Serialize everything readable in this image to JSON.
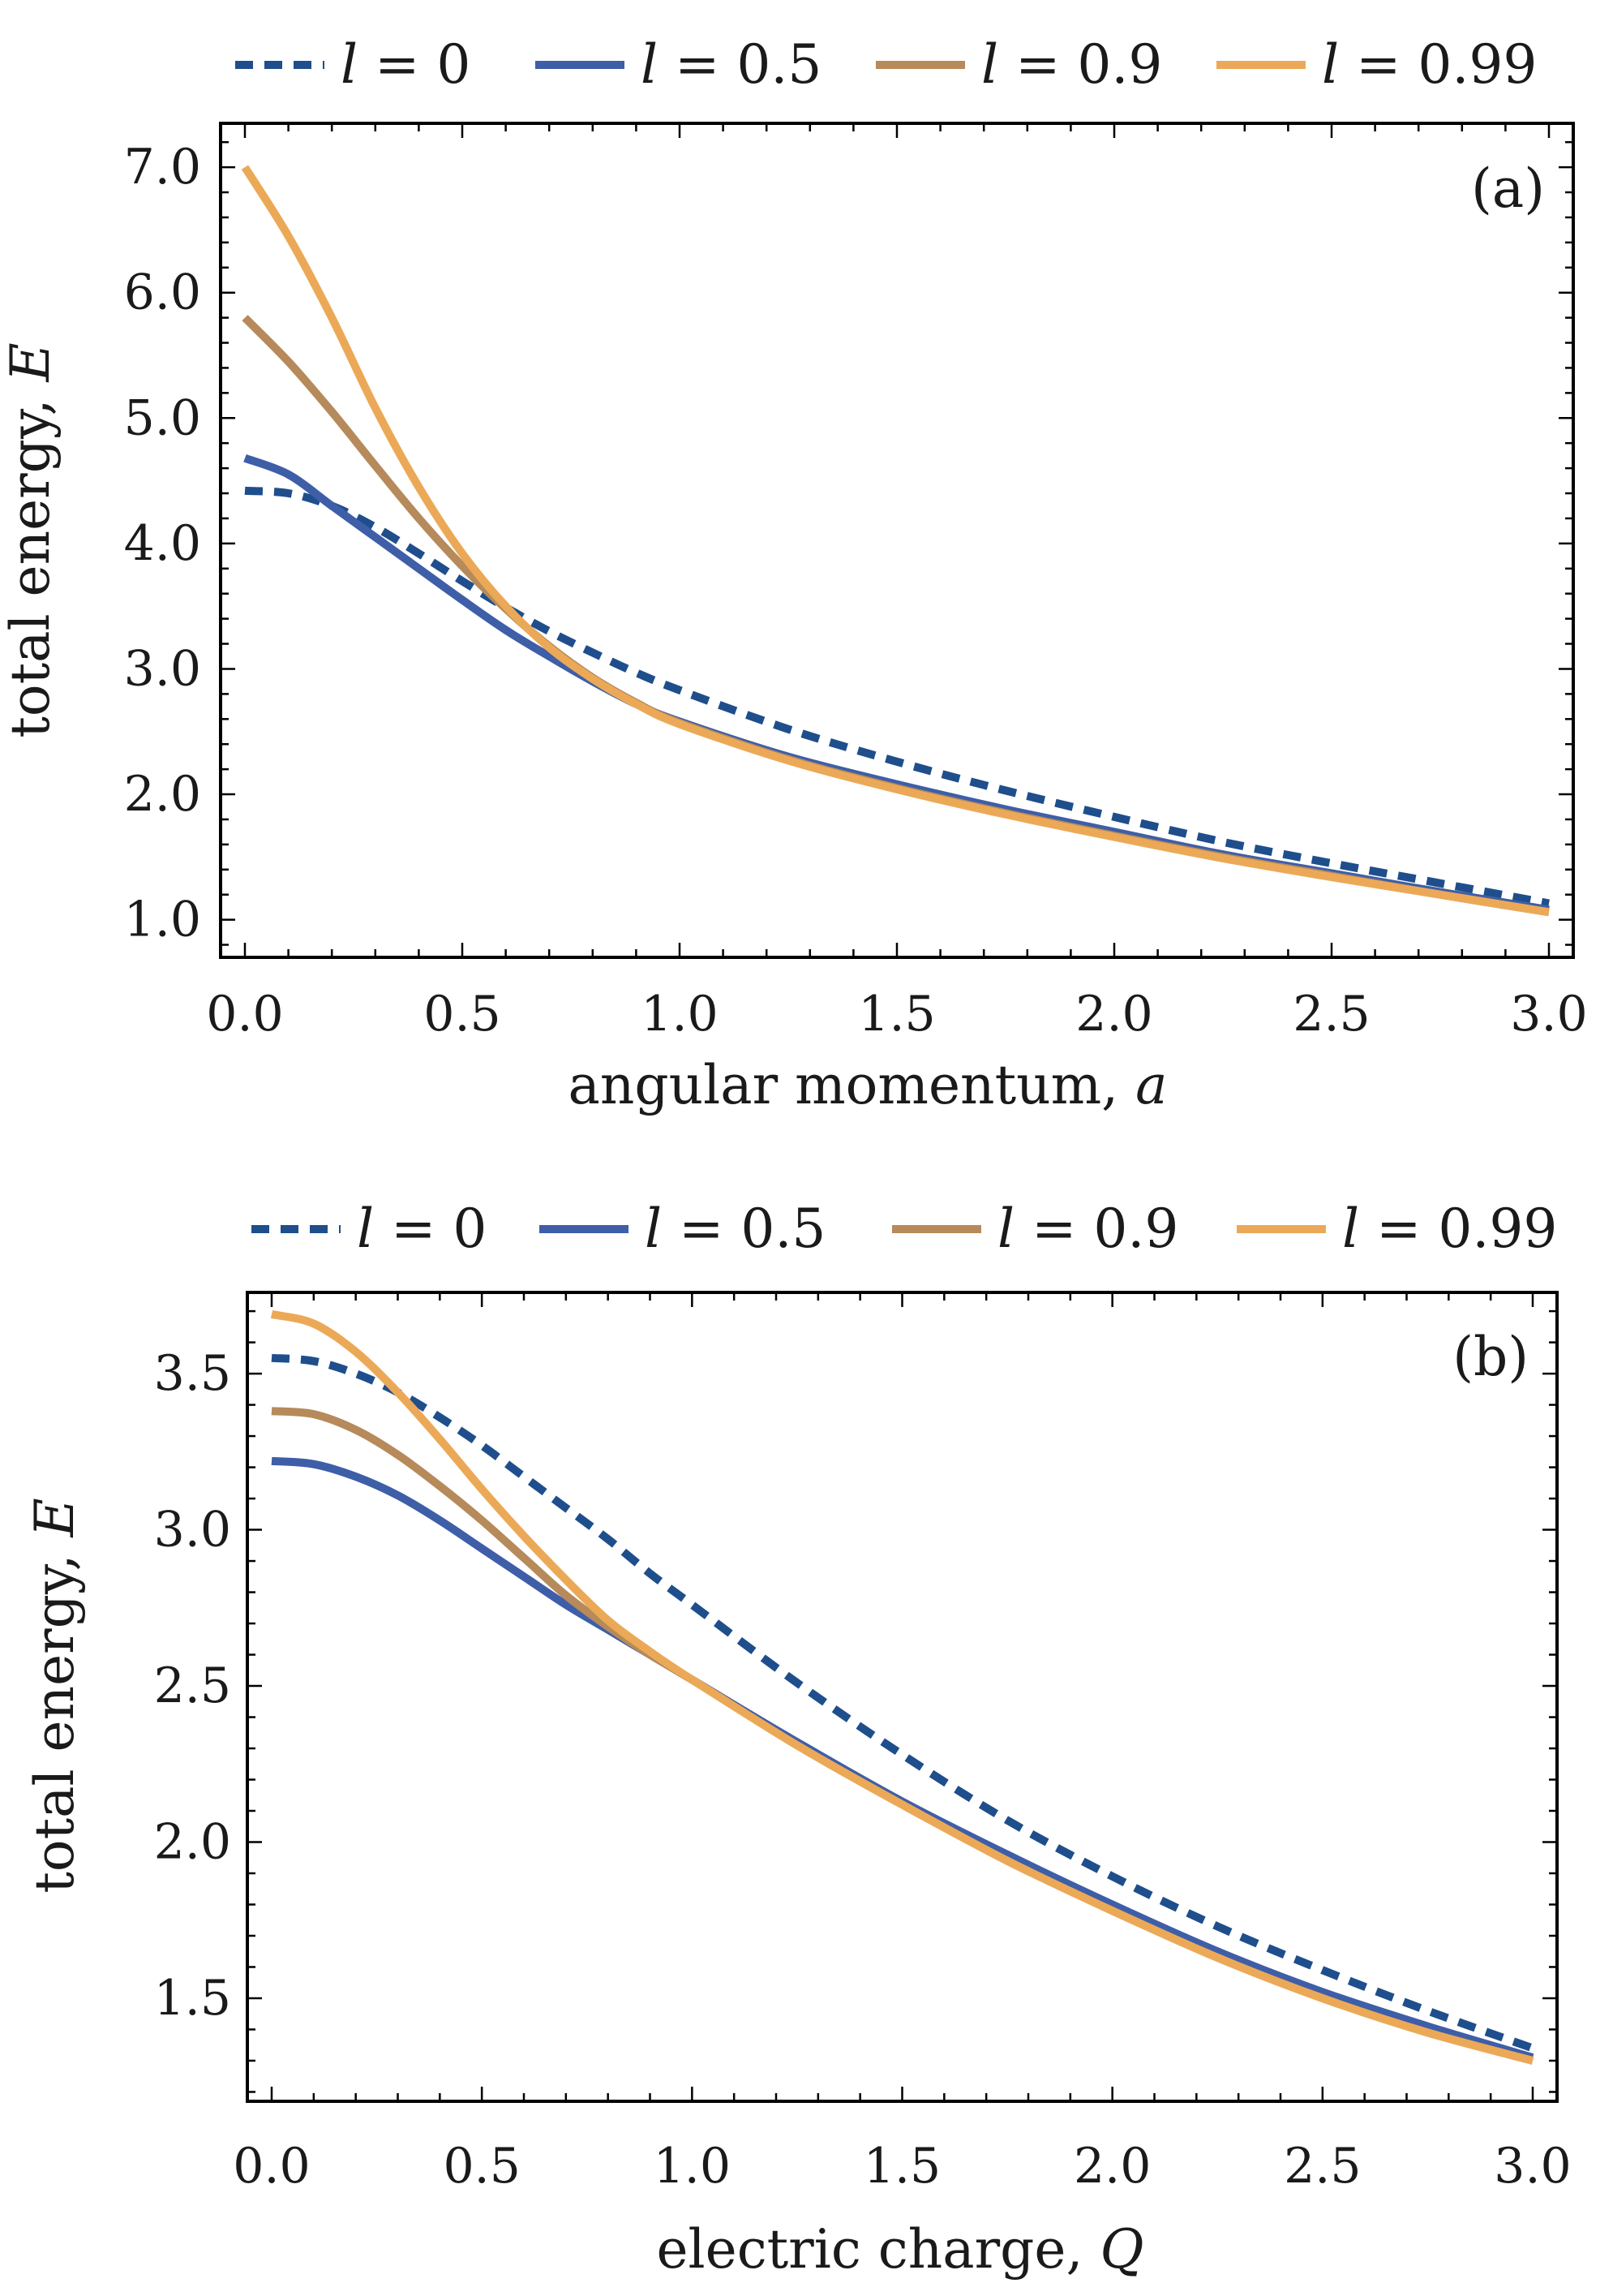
{
  "chart_data": [
    {
      "type": "line",
      "panel_tag": "(a)",
      "xlabel": "angular momentum,",
      "xlabel_var": "a",
      "ylabel": "total energy,",
      "ylabel_var": "E",
      "xlim": [
        0,
        3
      ],
      "ylim": [
        0.7,
        7.35
      ],
      "xticks": [
        0,
        0.5,
        1,
        1.5,
        2,
        2.5,
        3
      ],
      "yticks": [
        1,
        2,
        3,
        4,
        5,
        6,
        7
      ],
      "xtick_labels": [
        "0.0",
        "0.5",
        "1.0",
        "1.5",
        "2.0",
        "2.5",
        "3.0"
      ],
      "ytick_labels": [
        "1.0",
        "2.0",
        "3.0",
        "4.0",
        "5.0",
        "6.0",
        "7.0"
      ],
      "legend_position": "top",
      "series": [
        {
          "name": "l = 0",
          "var": "l",
          "value_text": "= 0",
          "color": "#1f4e8c",
          "dashed": true,
          "x": [
            0,
            0.1,
            0.2,
            0.3,
            0.4,
            0.5,
            0.6,
            0.7,
            0.8,
            0.9,
            1.0,
            1.25,
            1.5,
            1.75,
            2.0,
            2.25,
            2.5,
            2.75,
            3.0
          ],
          "y": [
            4.42,
            4.4,
            4.3,
            4.13,
            3.92,
            3.7,
            3.49,
            3.3,
            3.13,
            2.97,
            2.83,
            2.52,
            2.26,
            2.03,
            1.82,
            1.62,
            1.45,
            1.29,
            1.13
          ]
        },
        {
          "name": "l = 0.5",
          "var": "l",
          "value_text": "= 0.5",
          "color": "#3e5ea8",
          "dashed": false,
          "x": [
            0,
            0.1,
            0.2,
            0.3,
            0.4,
            0.5,
            0.6,
            0.7,
            0.8,
            0.9,
            1.0,
            1.25,
            1.5,
            1.75,
            2.0,
            2.25,
            2.5,
            2.75,
            3.0
          ],
          "y": [
            4.68,
            4.55,
            4.3,
            4.05,
            3.8,
            3.55,
            3.31,
            3.1,
            2.9,
            2.72,
            2.58,
            2.3,
            2.08,
            1.88,
            1.7,
            1.52,
            1.37,
            1.22,
            1.08
          ]
        },
        {
          "name": "l = 0.9",
          "var": "l",
          "value_text": "= 0.9",
          "color": "#b68a5a",
          "dashed": false,
          "x": [
            0,
            0.1,
            0.2,
            0.3,
            0.4,
            0.5,
            0.6,
            0.7,
            0.8,
            0.9,
            1.0,
            1.25,
            1.5,
            1.75,
            2.0,
            2.25,
            2.5,
            2.75,
            3.0
          ],
          "y": [
            5.8,
            5.45,
            5.05,
            4.62,
            4.2,
            3.82,
            3.48,
            3.18,
            2.93,
            2.73,
            2.57,
            2.28,
            2.05,
            1.85,
            1.67,
            1.5,
            1.35,
            1.2,
            1.06
          ]
        },
        {
          "name": "l = 0.99",
          "var": "l",
          "value_text": "= 0.99",
          "color": "#eba957",
          "dashed": false,
          "x": [
            0,
            0.1,
            0.2,
            0.3,
            0.4,
            0.5,
            0.6,
            0.7,
            0.8,
            0.9,
            1.0,
            1.25,
            1.5,
            1.75,
            2.0,
            2.25,
            2.5,
            2.75,
            3.0
          ],
          "y": [
            7.0,
            6.45,
            5.8,
            5.08,
            4.45,
            3.92,
            3.5,
            3.17,
            2.92,
            2.72,
            2.56,
            2.27,
            2.04,
            1.84,
            1.66,
            1.49,
            1.34,
            1.2,
            1.06
          ]
        }
      ]
    },
    {
      "type": "line",
      "panel_tag": "(b)",
      "xlabel": "electric charge,",
      "xlabel_var": "Q",
      "ylabel": "total energy,",
      "ylabel_var": "E",
      "xlim": [
        0,
        3
      ],
      "ylim": [
        1.17,
        3.76
      ],
      "xticks": [
        0,
        0.5,
        1,
        1.5,
        2,
        2.5,
        3
      ],
      "yticks": [
        1.5,
        2,
        2.5,
        3,
        3.5
      ],
      "xtick_labels": [
        "0.0",
        "0.5",
        "1.0",
        "1.5",
        "2.0",
        "2.5",
        "3.0"
      ],
      "ytick_labels": [
        "1.5",
        "2.0",
        "2.5",
        "3.0",
        "3.5"
      ],
      "legend_position": "top",
      "series": [
        {
          "name": "l = 0",
          "var": "l",
          "value_text": "= 0",
          "color": "#1f4e8c",
          "dashed": true,
          "x": [
            0,
            0.1,
            0.2,
            0.3,
            0.4,
            0.5,
            0.6,
            0.7,
            0.8,
            0.9,
            1.0,
            1.25,
            1.5,
            1.75,
            2.0,
            2.25,
            2.5,
            2.75,
            3.0
          ],
          "y": [
            3.55,
            3.54,
            3.5,
            3.44,
            3.36,
            3.27,
            3.17,
            3.07,
            2.97,
            2.86,
            2.76,
            2.51,
            2.28,
            2.07,
            1.89,
            1.73,
            1.59,
            1.46,
            1.34
          ]
        },
        {
          "name": "l = 0.5",
          "var": "l",
          "value_text": "= 0.5",
          "color": "#3e5ea8",
          "dashed": false,
          "x": [
            0,
            0.1,
            0.2,
            0.3,
            0.4,
            0.5,
            0.6,
            0.7,
            0.8,
            0.9,
            1.0,
            1.25,
            1.5,
            1.75,
            2.0,
            2.25,
            2.5,
            2.75,
            3.0
          ],
          "y": [
            3.22,
            3.21,
            3.17,
            3.11,
            3.03,
            2.94,
            2.85,
            2.76,
            2.68,
            2.6,
            2.52,
            2.32,
            2.13,
            1.96,
            1.8,
            1.65,
            1.52,
            1.41,
            1.31
          ]
        },
        {
          "name": "l = 0.9",
          "var": "l",
          "value_text": "= 0.9",
          "color": "#b68a5a",
          "dashed": false,
          "x": [
            0,
            0.1,
            0.2,
            0.3,
            0.4,
            0.5,
            0.6,
            0.7,
            0.8,
            0.9,
            1.0,
            1.25,
            1.5,
            1.75,
            2.0,
            2.25,
            2.5,
            2.75,
            3.0
          ],
          "y": [
            3.38,
            3.37,
            3.32,
            3.24,
            3.14,
            3.03,
            2.91,
            2.79,
            2.69,
            2.6,
            2.52,
            2.31,
            2.12,
            1.94,
            1.78,
            1.63,
            1.5,
            1.39,
            1.3
          ]
        },
        {
          "name": "l = 0.99",
          "var": "l",
          "value_text": "= 0.99",
          "color": "#eba957",
          "dashed": false,
          "x": [
            0,
            0.1,
            0.2,
            0.3,
            0.4,
            0.5,
            0.6,
            0.7,
            0.8,
            0.9,
            1.0,
            1.25,
            1.5,
            1.75,
            2.0,
            2.25,
            2.5,
            2.75,
            3.0
          ],
          "y": [
            3.69,
            3.66,
            3.57,
            3.44,
            3.29,
            3.13,
            2.98,
            2.84,
            2.71,
            2.61,
            2.52,
            2.31,
            2.12,
            1.94,
            1.78,
            1.63,
            1.5,
            1.39,
            1.3
          ]
        }
      ]
    }
  ]
}
